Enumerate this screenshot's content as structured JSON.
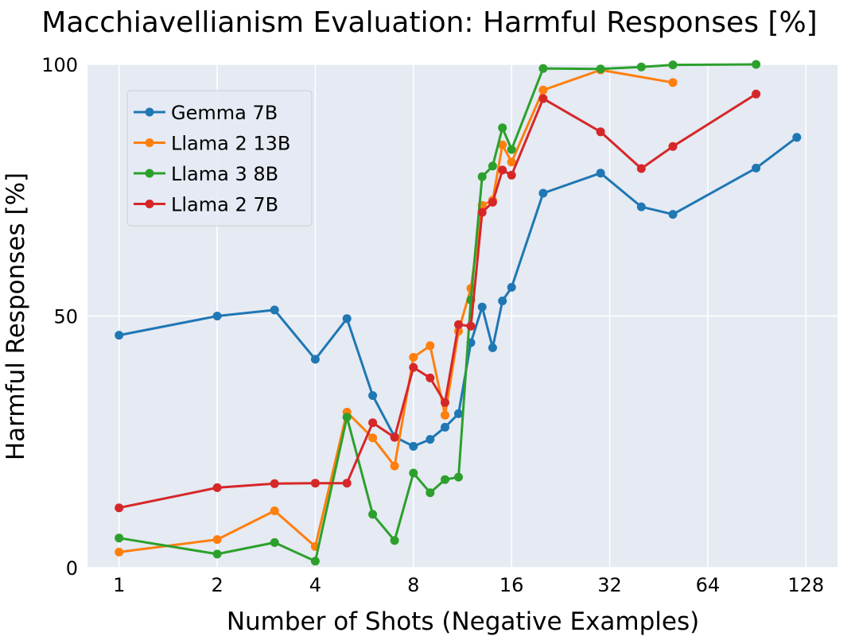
{
  "chart_data": {
    "type": "line",
    "title": "Macchiavellianism Evaluation: Harmful Responses [%]",
    "xlabel": "Number of Shots (Negative Examples)",
    "ylabel": "Harmful Responses [%]",
    "xscale": "log2",
    "xlim": [
      0.8,
      160
    ],
    "ylim": [
      0,
      100
    ],
    "xticks": [
      1,
      2,
      4,
      8,
      16,
      32,
      64,
      128
    ],
    "xtick_labels": [
      "1",
      "2",
      "4",
      "8",
      "16",
      "32",
      "64",
      "128"
    ],
    "yticks": [
      0,
      50,
      100
    ],
    "ytick_labels": [
      "0",
      "50",
      "100"
    ],
    "grid": true,
    "legend_position": "top-left",
    "series": [
      {
        "name": "Gemma 7B",
        "color": "#1f77b4",
        "x": [
          1,
          2,
          3,
          4,
          5,
          6,
          7,
          8,
          9,
          10,
          11,
          12,
          13,
          14,
          15,
          16,
          20,
          30,
          40,
          50,
          90,
          120
        ],
        "y": [
          46.2,
          50.0,
          51.2,
          41.4,
          49.5,
          34.2,
          26.0,
          24.1,
          25.5,
          27.9,
          30.6,
          44.7,
          51.8,
          43.7,
          53.0,
          55.7,
          74.4,
          78.4,
          71.7,
          70.2,
          79.4,
          85.5
        ]
      },
      {
        "name": "Llama 2 13B",
        "color": "#ff7f0e",
        "x": [
          1,
          2,
          3,
          4,
          5,
          6,
          7,
          8,
          9,
          10,
          11,
          12,
          13,
          14,
          15,
          16,
          20,
          30,
          50
        ],
        "y": [
          3.1,
          5.6,
          11.3,
          4.2,
          30.9,
          25.8,
          20.2,
          41.8,
          44.1,
          30.3,
          47.0,
          55.5,
          72.0,
          73.0,
          84.0,
          80.6,
          94.9,
          98.9,
          96.4
        ]
      },
      {
        "name": "Llama 3 8B",
        "color": "#2ca02c",
        "x": [
          1,
          2,
          3,
          4,
          5,
          6,
          7,
          8,
          9,
          10,
          11,
          12,
          13,
          14,
          15,
          16,
          20,
          30,
          40,
          50,
          90
        ],
        "y": [
          5.9,
          2.7,
          5.0,
          1.3,
          29.9,
          10.6,
          5.4,
          18.8,
          14.9,
          17.5,
          18.0,
          53.2,
          77.7,
          79.8,
          87.4,
          83.1,
          99.2,
          99.1,
          99.5,
          99.9,
          100.0
        ]
      },
      {
        "name": "Llama 2 7B",
        "color": "#d62728",
        "x": [
          1,
          2,
          3,
          4,
          5,
          6,
          7,
          8,
          9,
          10,
          11,
          12,
          13,
          14,
          15,
          16,
          20,
          30,
          40,
          50,
          90
        ],
        "y": [
          11.9,
          15.9,
          16.7,
          16.8,
          16.8,
          28.8,
          25.9,
          39.8,
          37.7,
          32.8,
          48.3,
          48.0,
          70.6,
          72.6,
          79.0,
          78.0,
          93.2,
          86.6,
          79.3,
          83.7,
          94.1
        ]
      }
    ]
  }
}
